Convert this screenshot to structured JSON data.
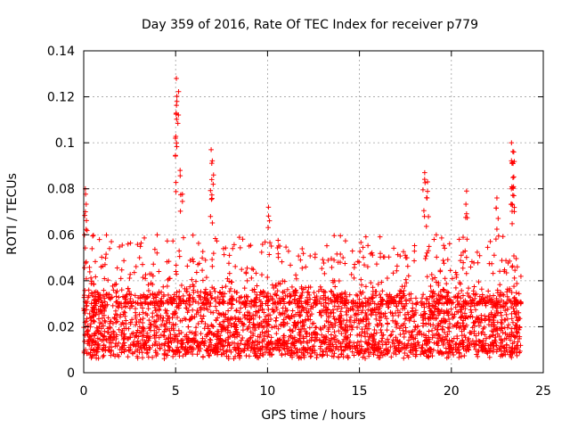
{
  "chart_data": {
    "type": "scatter",
    "title": "Day 359 of 2016, Rate Of TEC Index for receiver p779",
    "xlabel": "GPS time / hours",
    "ylabel": "ROTI / TECUs",
    "xlim": [
      0,
      25
    ],
    "ylim": [
      0,
      0.14
    ],
    "x_ticks": [
      0,
      5,
      10,
      15,
      20,
      25
    ],
    "y_ticks": [
      0,
      0.02,
      0.04,
      0.06,
      0.08,
      0.1,
      0.12,
      0.14
    ],
    "x_tick_labels": [
      "0",
      "5",
      "10",
      "15",
      "20",
      "25"
    ],
    "y_tick_labels": [
      "0",
      "0.02",
      "0.04",
      "0.06",
      "0.08",
      "0.1",
      "0.12",
      "0.14"
    ],
    "grid": true,
    "marker": "+",
    "color": "#ff0000",
    "series": [
      {
        "name": "ROTI",
        "x_range": [
          0,
          23.8
        ],
        "bulk_band": [
          0.008,
          0.035
        ],
        "peaks": [
          {
            "x": 0.1,
            "y": 0.08
          },
          {
            "x": 0.15,
            "y": 0.07
          },
          {
            "x": 5.1,
            "y": 0.128
          },
          {
            "x": 5.05,
            "y": 0.118
          },
          {
            "x": 5.0,
            "y": 0.102
          },
          {
            "x": 5.3,
            "y": 0.088
          },
          {
            "x": 7.0,
            "y": 0.097
          },
          {
            "x": 6.95,
            "y": 0.084
          },
          {
            "x": 10.1,
            "y": 0.072
          },
          {
            "x": 18.5,
            "y": 0.087
          },
          {
            "x": 18.7,
            "y": 0.083
          },
          {
            "x": 20.8,
            "y": 0.079
          },
          {
            "x": 23.3,
            "y": 0.1
          },
          {
            "x": 23.35,
            "y": 0.096
          },
          {
            "x": 23.4,
            "y": 0.091
          },
          {
            "x": 23.3,
            "y": 0.08
          },
          {
            "x": 22.5,
            "y": 0.076
          }
        ]
      }
    ]
  }
}
